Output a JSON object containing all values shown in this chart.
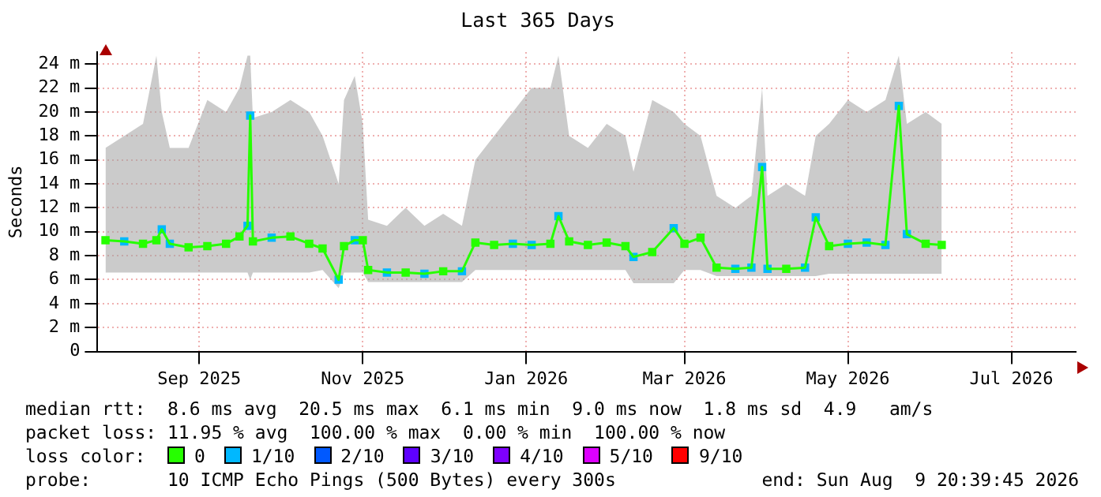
{
  "chart_data": {
    "type": "line",
    "title": "Last 365 Days",
    "ylabel": "Seconds",
    "x": [
      "2025-08-12",
      "2025-08-19",
      "2025-08-26",
      "2025-08-31",
      "2025-09-02",
      "2025-09-05",
      "2025-09-12",
      "2025-09-19",
      "2025-09-26",
      "2025-10-01",
      "2025-10-04",
      "2025-10-05",
      "2025-10-06",
      "2025-10-13",
      "2025-10-20",
      "2025-10-27",
      "2025-11-01",
      "2025-11-07",
      "2025-11-09",
      "2025-11-13",
      "2025-11-16",
      "2025-11-18",
      "2025-11-25",
      "2025-12-02",
      "2025-12-09",
      "2025-12-16",
      "2025-12-23",
      "2025-12-28",
      "2026-01-04",
      "2026-01-11",
      "2026-01-18",
      "2026-01-25",
      "2026-01-28",
      "2026-02-01",
      "2026-02-08",
      "2026-02-15",
      "2026-02-22",
      "2026-02-25",
      "2026-03-04",
      "2026-03-12",
      "2026-03-16",
      "2026-03-22",
      "2026-03-28",
      "2026-04-04",
      "2026-04-10",
      "2026-04-14",
      "2026-04-16",
      "2026-04-23",
      "2026-04-30",
      "2026-05-04",
      "2026-05-09",
      "2026-05-16",
      "2026-05-23",
      "2026-05-30",
      "2026-06-04",
      "2026-06-07",
      "2026-06-14",
      "2026-06-20"
    ],
    "series": [
      {
        "color": "#26ff00",
        "marker": "square",
        "values": [
          9.3,
          9.2,
          9.0,
          9.3,
          10.2,
          9.0,
          8.7,
          8.8,
          9.0,
          9.6,
          10.5,
          19.7,
          9.2,
          9.5,
          9.6,
          9.0,
          8.6,
          6.0,
          8.8,
          9.3,
          9.3,
          6.8,
          6.6,
          6.6,
          6.5,
          6.7,
          6.7,
          9.1,
          8.9,
          9.0,
          8.9,
          9.0,
          11.3,
          9.2,
          8.9,
          9.1,
          8.8,
          7.9,
          8.3,
          10.3,
          9.0,
          9.5,
          7.0,
          6.9,
          7.0,
          15.4,
          6.9,
          6.9,
          7.0,
          11.2,
          8.8,
          9.0,
          9.1,
          8.9,
          20.5,
          9.8,
          9.0,
          8.9
        ],
        "colors": [
          "#26ff00",
          "#00b8ff",
          "#26ff00",
          "#26ff00",
          "#00b8ff",
          "#00b8ff",
          "#26ff00",
          "#26ff00",
          "#26ff00",
          "#26ff00",
          "#00b8ff",
          "#00b8ff",
          "#26ff00",
          "#00b8ff",
          "#26ff00",
          "#26ff00",
          "#26ff00",
          "#00b8ff",
          "#26ff00",
          "#00b8ff",
          "#26ff00",
          "#26ff00",
          "#00b8ff",
          "#26ff00",
          "#00b8ff",
          "#26ff00",
          "#00b8ff",
          "#26ff00",
          "#26ff00",
          "#00b8ff",
          "#00b8ff",
          "#26ff00",
          "#00b8ff",
          "#26ff00",
          "#26ff00",
          "#26ff00",
          "#26ff00",
          "#00b8ff",
          "#26ff00",
          "#00b8ff",
          "#26ff00",
          "#26ff00",
          "#26ff00",
          "#00b8ff",
          "#00b8ff",
          "#00b8ff",
          "#00b8ff",
          "#26ff00",
          "#00b8ff",
          "#00b8ff",
          "#26ff00",
          "#00b8ff",
          "#00b8ff",
          "#00b8ff",
          "#00b8ff",
          "#00b8ff",
          "#26ff00",
          "#26ff00"
        ],
        "lower": [
          6.6,
          6.6,
          6.6,
          6.6,
          6.6,
          6.6,
          6.6,
          6.6,
          6.6,
          6.6,
          6.6,
          6.0,
          6.6,
          6.6,
          6.6,
          6.6,
          6.8,
          5.3,
          6.6,
          6.6,
          6.6,
          5.8,
          5.8,
          5.8,
          5.8,
          5.8,
          5.8,
          6.8,
          6.8,
          6.8,
          6.8,
          6.8,
          6.8,
          6.8,
          6.8,
          6.8,
          6.8,
          5.7,
          5.7,
          5.7,
          6.8,
          6.8,
          6.3,
          6.3,
          6.3,
          6.3,
          6.3,
          6.3,
          6.3,
          6.3,
          6.5,
          6.5,
          6.5,
          6.5,
          6.5,
          6.5,
          6.5,
          6.5
        ],
        "upper": [
          17,
          18,
          19,
          24.7,
          20,
          17,
          17,
          21,
          20,
          22,
          24.7,
          24.7,
          19.5,
          20,
          21,
          20,
          18,
          14,
          21,
          23,
          19,
          11,
          10.5,
          12,
          10.5,
          11.5,
          10.5,
          16,
          18,
          20,
          22,
          22,
          24.7,
          18,
          17,
          19,
          18,
          15,
          21,
          20,
          19,
          18,
          13,
          12,
          13,
          22,
          13,
          14,
          13,
          18,
          19,
          21,
          20,
          21,
          24.7,
          19,
          20,
          19
        ]
      }
    ],
    "xlim": [
      "2025-08-09",
      "2026-08-09"
    ],
    "xticks": [
      {
        "value": "2025-09-16",
        "label": "Sep 2025"
      },
      {
        "value": "2025-11-16",
        "label": "Nov 2025"
      },
      {
        "value": "2026-01-16",
        "label": "Jan 2026"
      },
      {
        "value": "2026-03-16",
        "label": "Mar 2026"
      },
      {
        "value": "2026-05-16",
        "label": "May 2026"
      },
      {
        "value": "2026-07-16",
        "label": "Jul 2026"
      }
    ],
    "ylim": [
      0,
      25
    ],
    "yticks": [
      0,
      {
        "value": 2,
        "label": "2 m"
      },
      {
        "value": 4,
        "label": "4 m"
      },
      {
        "value": 6,
        "label": "6 m"
      },
      {
        "value": 8,
        "label": "8 m"
      },
      {
        "value": 10,
        "label": "10 m"
      },
      {
        "value": 12,
        "label": "12 m"
      },
      {
        "value": 14,
        "label": "14 m"
      },
      {
        "value": 16,
        "label": "16 m"
      },
      {
        "value": 18,
        "label": "18 m"
      },
      {
        "value": 20,
        "label": "20 m"
      },
      {
        "value": 22,
        "label": "22 m"
      },
      {
        "value": 24,
        "label": "24 m"
      }
    ],
    "grid": true,
    "legend": false,
    "annotations": [
      "median rtt:  8.6 ms avg  20.5 ms max  6.1 ms min  9.0 ms now  1.8 ms sd  4.9   am/s",
      "packet loss: 11.95 % avg  100.00 % max  0.00 % min  100.00 % now",
      "loss color:",
      "0",
      "1/10",
      "2/10",
      "3/10",
      "4/10",
      "5/10",
      "9/10",
      "probe:       10 ICMP Echo Pings (500 Bytes) every 300s",
      "end: Sun Aug  9 20:39:45 2026"
    ]
  }
}
